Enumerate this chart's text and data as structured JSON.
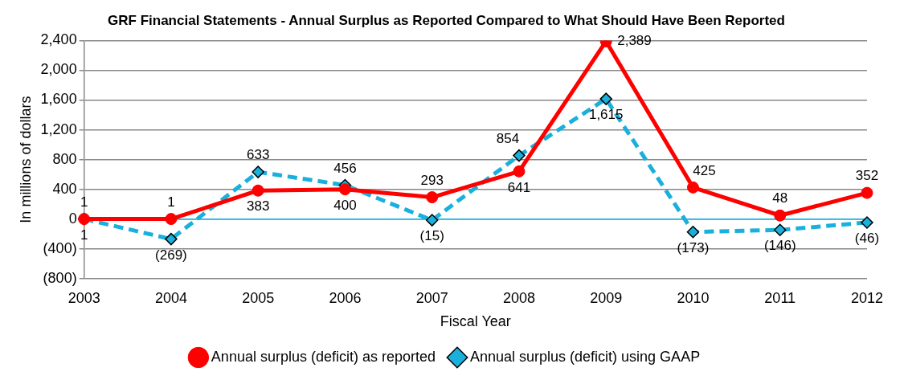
{
  "chart_data": {
    "type": "line",
    "title": "GRF Financial Statements - Annual Surplus as Reported Compared to What Should Have Been Reported",
    "xlabel": "Fiscal Year",
    "ylabel": "In millions of dollars",
    "categories": [
      "2003",
      "2004",
      "2005",
      "2006",
      "2007",
      "2008",
      "2009",
      "2010",
      "2011",
      "2012"
    ],
    "series": [
      {
        "name": "Annual surplus (deficit) as reported",
        "color": "#ff0000",
        "marker": "circle",
        "line_style": "solid",
        "values": [
          1,
          1,
          383,
          400,
          293,
          641,
          2389,
          425,
          48,
          352
        ],
        "value_labels": [
          "1",
          "1",
          "383",
          "400",
          "293",
          "641",
          "2,389",
          "425",
          "48",
          "352"
        ]
      },
      {
        "name": "Annual surplus (deficit) using GAAP",
        "color": "#1ab0dc",
        "marker": "diamond",
        "line_style": "dashed",
        "values": [
          1,
          -269,
          633,
          456,
          -15,
          854,
          1615,
          -173,
          -146,
          -46
        ],
        "value_labels": [
          "1",
          "(269)",
          "633",
          "456",
          "(15)",
          "854",
          "1,615",
          "(173)",
          "(146)",
          "(46)"
        ]
      }
    ],
    "ylim": [
      -800,
      2400
    ],
    "yticks": [
      {
        "value": -800,
        "label": "(800)"
      },
      {
        "value": -400,
        "label": "(400)"
      },
      0,
      400,
      800,
      {
        "value": 1200,
        "label": "1,200"
      },
      {
        "value": 1600,
        "label": "1,600"
      },
      {
        "value": 2000,
        "label": "2,000"
      },
      {
        "value": 2400,
        "label": "2,400"
      }
    ],
    "ref_lines": [
      {
        "axis": "y",
        "value": 0,
        "color": "#1ab0dc"
      }
    ],
    "grid": "y",
    "legend": "bottom"
  }
}
